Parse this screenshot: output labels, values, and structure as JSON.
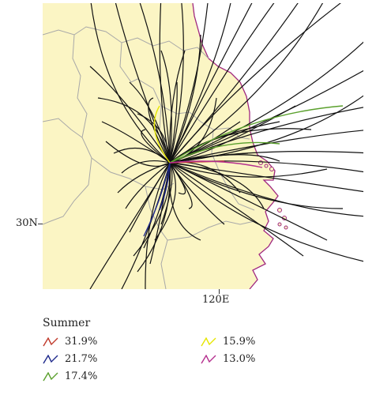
{
  "axes": {
    "lat_label": "30N",
    "lon_label": "120E"
  },
  "legend": {
    "title": "Summer",
    "items": [
      {
        "label": "31.9%",
        "color": "#c0392b"
      },
      {
        "label": "21.7%",
        "color": "#1f2a8c"
      },
      {
        "label": "17.4%",
        "color": "#5aa02c"
      },
      {
        "label": "15.9%",
        "color": "#e6e600"
      },
      {
        "label": "13.0%",
        "color": "#b5308f"
      }
    ]
  },
  "colors": {
    "land": "#fbf5c4",
    "sea": "#ffffff",
    "coastline": "#a0287f",
    "province_border": "#a8a8a8",
    "trajectory": "#111111"
  }
}
